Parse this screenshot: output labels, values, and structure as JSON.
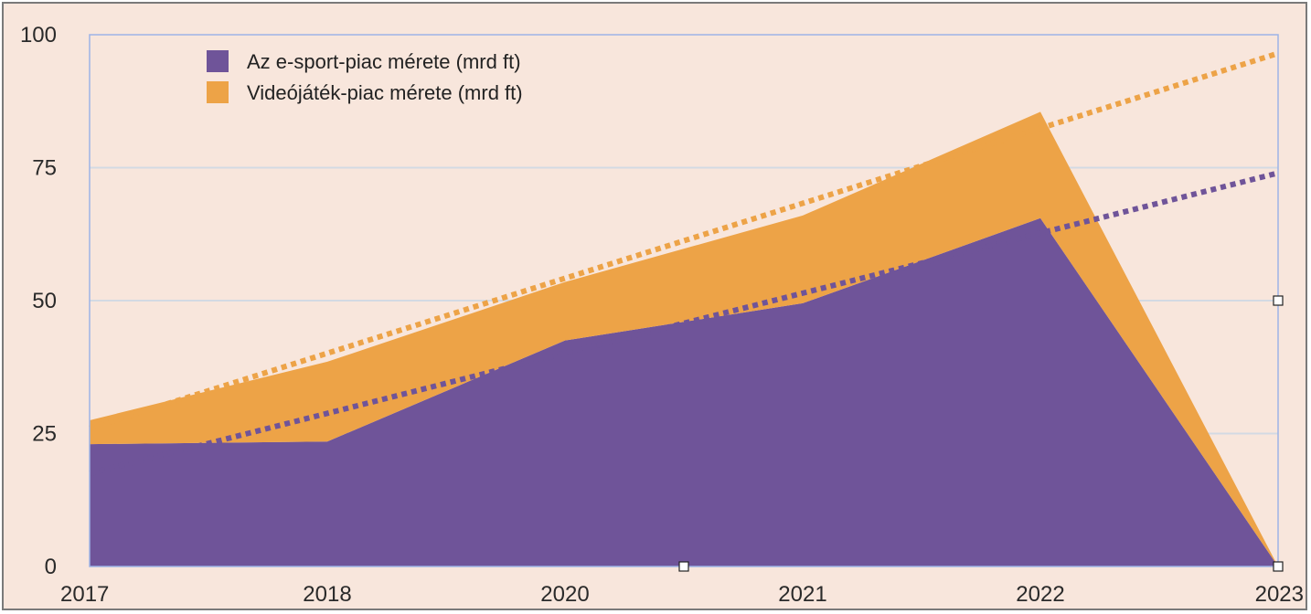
{
  "chart_data": {
    "type": "area",
    "stacked": true,
    "categories": [
      "2017",
      "2018",
      "2020",
      "2021",
      "2022",
      "2023"
    ],
    "series": [
      {
        "name": "Az e-sport-piac mérete (mrd ft)",
        "color": "#6f5499",
        "values": [
          23,
          23.5,
          42.5,
          49.5,
          65.5,
          0
        ],
        "trendline": {
          "style": "dotted",
          "from": 17.5,
          "to": 74
        }
      },
      {
        "name": "Videójáték-piac mérete (mrd ft)",
        "color": "#eda347",
        "values": [
          4.5,
          15,
          11,
          16.5,
          20,
          0
        ],
        "trendline": {
          "style": "dotted",
          "from": 26,
          "to": 96.5
        }
      }
    ],
    "y_ticks": [
      "0",
      "25",
      "50",
      "75",
      "100"
    ],
    "ylim": [
      0,
      100
    ],
    "grid": true,
    "legend": "top-left",
    "background": "#f8e6dc",
    "gridline_color": "#d3dae3",
    "plot_border_color": "#9db4e6"
  }
}
